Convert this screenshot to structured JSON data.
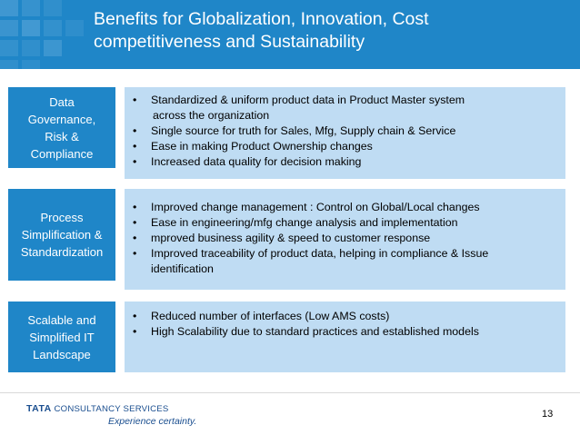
{
  "slide": {
    "title_lines": [
      "Benefits for Globalization, Innovation, Cost",
      "competitiveness and Sustainability"
    ],
    "page_number": "13",
    "colors": {
      "header": "#1f86c8",
      "label_box": "#1f86c8",
      "content_box": "#bfdcf3",
      "brand": "#1a4e8f"
    }
  },
  "sections": [
    {
      "label_lines": [
        "Data",
        "Governance,",
        "Risk &",
        "Compliance"
      ],
      "bullets": [
        [
          "Standardized & uniform product data in Product Master system",
          "across the organization"
        ],
        [
          "Single source for truth for Sales, Mfg, Supply chain & Service"
        ],
        [
          "Ease in making Product Ownership changes"
        ],
        [
          "Increased data quality for decision making"
        ]
      ]
    },
    {
      "label_lines": [
        "Process",
        "Simplification &",
        "Standardization"
      ],
      "bullets": [
        [
          "Improved change management : Control on Global/Local changes"
        ],
        [
          "Ease in engineering/mfg  change analysis and implementation"
        ],
        [
          "mproved business agility & speed to customer response"
        ],
        [
          "Improved traceability of product data, helping in compliance & Issue",
          "identification"
        ]
      ]
    },
    {
      "label_lines": [
        "Scalable and",
        "Simplified IT",
        "Landscape"
      ],
      "bullets": [
        [
          "Reduced number of interfaces  (Low AMS costs)"
        ],
        [
          "High Scalability due to standard practices and established models"
        ]
      ]
    }
  ],
  "footer": {
    "logo_tata": "TATA",
    "logo_company": "CONSULTANCY SERVICES",
    "tagline": "Experience certainty."
  }
}
